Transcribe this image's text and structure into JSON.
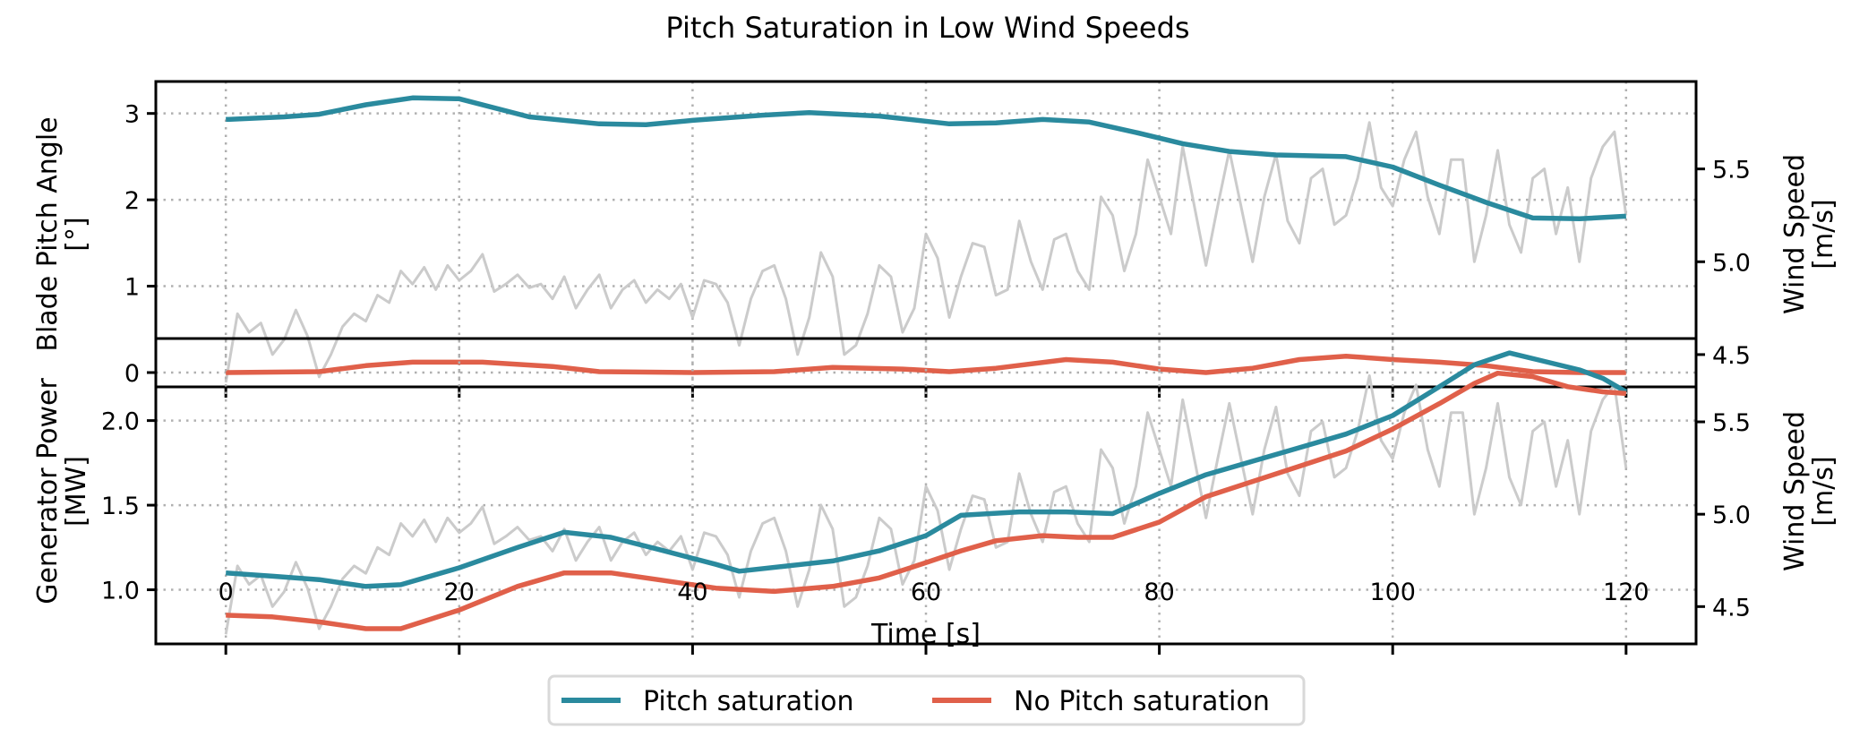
{
  "chart_data": {
    "type": "line",
    "title": "Pitch Saturation in Low Wind Speeds",
    "xlabel": "Time [s]",
    "xlim": [
      -6,
      126
    ],
    "x_ticks": [
      0,
      20,
      40,
      60,
      80,
      100,
      120
    ],
    "grid": true,
    "legend": {
      "placement": "bottom-center",
      "entries": [
        {
          "name": "Pitch saturation",
          "color": "#2a8a9e"
        },
        {
          "name": "No Pitch saturation",
          "color": "#e0604a"
        }
      ]
    },
    "panels": [
      {
        "ylabel": "Blade Pitch Angle\n[°]",
        "ylabel_lines": [
          "Blade Pitch Angle",
          "[°]"
        ],
        "ylim": [
          -0.166,
          3.37
        ],
        "y_ticks": [
          0,
          1,
          2,
          3
        ],
        "y_tick_labels": [
          "0",
          "1",
          "2",
          "3"
        ],
        "y2label_lines": [
          "Wind Speed",
          "[m/s]"
        ],
        "y2lim": [
          4.326,
          5.971
        ],
        "y2_ticks": [
          4.5,
          5.0,
          5.5
        ],
        "y2_tick_labels": [
          "4.5",
          "5.0",
          "5.5"
        ],
        "series": [
          {
            "name": "Pitch saturation",
            "color": "#2a8a9e",
            "x": [
              0,
              5,
              8,
              12,
              16,
              20,
              26,
              32,
              36,
              40,
              46,
              50,
              56,
              62,
              66,
              70,
              74,
              78,
              82,
              86,
              90,
              96,
              100,
              104,
              108,
              112,
              116,
              120
            ],
            "values": [
              2.93,
              2.96,
              2.99,
              3.1,
              3.18,
              3.17,
              2.96,
              2.88,
              2.87,
              2.92,
              2.98,
              3.01,
              2.97,
              2.88,
              2.89,
              2.93,
              2.9,
              2.78,
              2.65,
              2.56,
              2.52,
              2.5,
              2.38,
              2.17,
              1.97,
              1.79,
              1.78,
              1.81
            ]
          },
          {
            "name": "No Pitch saturation",
            "color": "#e0604a",
            "x": [
              0,
              8,
              12,
              16,
              22,
              28,
              32,
              40,
              47,
              52,
              58,
              62,
              66,
              72,
              76,
              80,
              84,
              88,
              92,
              96,
              100,
              104,
              108,
              112,
              116,
              120
            ],
            "values": [
              0,
              0.01,
              0.08,
              0.12,
              0.12,
              0.07,
              0.01,
              0,
              0.01,
              0.06,
              0.04,
              0.01,
              0.05,
              0.15,
              0.12,
              0.04,
              0,
              0.05,
              0.15,
              0.19,
              0.15,
              0.12,
              0.08,
              0.01,
              0,
              0
            ]
          }
        ]
      },
      {
        "ylabel_lines": [
          "Generator Power",
          "[MW]"
        ],
        "ylim": [
          0.68,
          2.485
        ],
        "y_ticks": [
          1.0,
          1.5,
          2.0
        ],
        "y_tick_labels": [
          "1.0",
          "1.5",
          "2.0"
        ],
        "y2label_lines": [
          "Wind Speed",
          "[m/s]"
        ],
        "y2lim": [
          4.298,
          5.951
        ],
        "y2_ticks": [
          4.5,
          5.0,
          5.5
        ],
        "y2_tick_labels": [
          "4.5",
          "5.0",
          "5.5"
        ],
        "series": [
          {
            "name": "Pitch saturation",
            "color": "#2a8a9e",
            "x": [
              0,
              4,
              8,
              12,
              15,
              20,
              25,
              29,
              33,
              37,
              42,
              44,
              48,
              52,
              56,
              60,
              63,
              68,
              72,
              76,
              80,
              84,
              88,
              92,
              96,
              100,
              104,
              107,
              110,
              113,
              116,
              118,
              120
            ],
            "values": [
              1.1,
              1.08,
              1.06,
              1.02,
              1.03,
              1.13,
              1.25,
              1.34,
              1.31,
              1.24,
              1.15,
              1.11,
              1.14,
              1.17,
              1.23,
              1.32,
              1.44,
              1.46,
              1.46,
              1.45,
              1.57,
              1.68,
              1.76,
              1.84,
              1.92,
              2.03,
              2.2,
              2.33,
              2.4,
              2.35,
              2.3,
              2.25,
              2.17
            ]
          },
          {
            "name": "No Pitch saturation",
            "color": "#e0604a",
            "x": [
              0,
              4,
              8,
              12,
              15,
              20,
              25,
              29,
              33,
              37,
              42,
              47,
              52,
              56,
              60,
              63,
              66,
              70,
              73,
              76,
              80,
              84,
              88,
              92,
              96,
              100,
              104,
              107,
              109,
              112,
              115,
              118,
              120
            ],
            "values": [
              0.85,
              0.84,
              0.81,
              0.77,
              0.77,
              0.88,
              1.02,
              1.1,
              1.1,
              1.06,
              1.01,
              0.99,
              1.02,
              1.07,
              1.16,
              1.23,
              1.29,
              1.32,
              1.31,
              1.31,
              1.4,
              1.55,
              1.64,
              1.73,
              1.82,
              1.95,
              2.1,
              2.22,
              2.28,
              2.26,
              2.2,
              2.17,
              2.16
            ]
          }
        ]
      }
    ],
    "wind_speed": {
      "name": "Wind Speed",
      "color": "#c8c8c8",
      "x_start": 0,
      "x_step": 1,
      "values": [
        4.35,
        4.72,
        4.62,
        4.67,
        4.5,
        4.58,
        4.74,
        4.6,
        4.38,
        4.5,
        4.65,
        4.72,
        4.68,
        4.82,
        4.78,
        4.95,
        4.88,
        4.97,
        4.85,
        4.98,
        4.9,
        4.95,
        5.04,
        4.84,
        4.88,
        4.93,
        4.86,
        4.88,
        4.8,
        4.92,
        4.75,
        4.85,
        4.93,
        4.75,
        4.85,
        4.9,
        4.78,
        4.85,
        4.8,
        4.88,
        4.7,
        4.9,
        4.88,
        4.78,
        4.55,
        4.8,
        4.95,
        4.98,
        4.8,
        4.5,
        4.7,
        5.05,
        4.92,
        4.5,
        4.55,
        4.72,
        4.98,
        4.92,
        4.62,
        4.75,
        5.15,
        5.02,
        4.7,
        4.92,
        5.1,
        5.08,
        4.82,
        4.85,
        5.22,
        5.0,
        4.85,
        5.12,
        5.15,
        4.95,
        4.85,
        5.35,
        5.25,
        4.95,
        5.15,
        5.55,
        5.35,
        5.15,
        5.62,
        5.3,
        4.98,
        5.3,
        5.6,
        5.3,
        5.0,
        5.35,
        5.58,
        5.22,
        5.1,
        5.45,
        5.5,
        5.2,
        5.25,
        5.45,
        5.75,
        5.4,
        5.3,
        5.55,
        5.7,
        5.35,
        5.15,
        5.55,
        5.55,
        5.0,
        5.25,
        5.6,
        5.2,
        5.05,
        5.45,
        5.5,
        5.15,
        5.4,
        5.0,
        5.45,
        5.62,
        5.7,
        5.25
      ]
    }
  }
}
